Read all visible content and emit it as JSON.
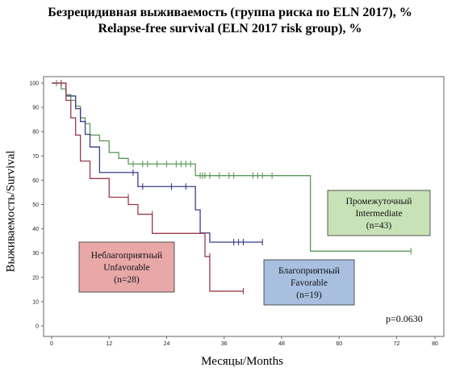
{
  "title": {
    "line1": "Безрецидивная выживаемость (группа риска по ELN 2017), %",
    "line2": "Relapse-free survival (ELN 2017 risk group), %"
  },
  "chart_data": {
    "type": "line",
    "step": true,
    "xlabel": "Месяцы/Months",
    "ylabel": "Выживаемость/Survival",
    "xlim": [
      0,
      80
    ],
    "ylim": [
      0,
      100
    ],
    "xticks": [
      0,
      12,
      24,
      36,
      48,
      60,
      72,
      80
    ],
    "yticks": [
      0,
      10,
      20,
      30,
      40,
      50,
      60,
      70,
      80,
      90,
      100
    ],
    "grid": false,
    "p_value": "p=0.0630",
    "series": [
      {
        "key": "intermediate",
        "name": "Промежуточный Intermediate (n=43)",
        "label_lines": [
          "Промежуточный",
          "Intermediate",
          "(n=43)"
        ],
        "color": "#5a9a5a",
        "box_fill": "#c8e2b8",
        "x": [
          0,
          2,
          3,
          4,
          5,
          6,
          7,
          8,
          10,
          12,
          14,
          16,
          30,
          54,
          75
        ],
        "y": [
          100,
          97.6,
          95.2,
          92.9,
          90.5,
          85.7,
          83.3,
          78.6,
          76.2,
          71.4,
          69.0,
          66.7,
          61.9,
          30.8,
          30.8
        ],
        "censor_x": [
          1,
          17,
          19,
          20,
          22,
          24,
          26,
          27,
          28,
          29,
          31,
          31.5,
          32,
          33,
          35,
          37,
          38,
          42,
          43,
          44,
          46,
          75
        ],
        "censor_y": [
          100,
          66.7,
          66.7,
          66.7,
          66.7,
          66.7,
          66.7,
          66.7,
          66.7,
          66.7,
          61.9,
          61.9,
          61.9,
          61.9,
          61.9,
          61.9,
          61.9,
          61.9,
          61.9,
          61.9,
          61.9,
          30.8
        ]
      },
      {
        "key": "favorable",
        "name": "Благоприятный Favorable (n=19)",
        "label_lines": [
          "Благоприятный",
          "Favorable",
          "(n=19)"
        ],
        "color": "#3b3b8a",
        "box_fill": "#a8bfe0",
        "x": [
          0,
          3,
          5,
          6,
          7,
          8,
          10,
          18,
          30,
          31,
          33,
          44
        ],
        "y": [
          100,
          94.7,
          89.5,
          84.2,
          78.9,
          73.7,
          63.2,
          57.4,
          47.8,
          38.3,
          34.5,
          34.5
        ],
        "censor_x": [
          17,
          19,
          25,
          28,
          38,
          39,
          40,
          44
        ],
        "censor_y": [
          63.2,
          57.4,
          57.4,
          57.4,
          34.5,
          34.5,
          34.5,
          34.5
        ]
      },
      {
        "key": "unfavorable",
        "name": "Неблагоприятный Unfavorable (n=28)",
        "label_lines": [
          "Неблагоприятный",
          "Unfavorable",
          "(n=28)"
        ],
        "color": "#9a3a4a",
        "box_fill": "#e8a8a8",
        "x": [
          0,
          3,
          4,
          5,
          6,
          8,
          12,
          16,
          18,
          21,
          32,
          33,
          40
        ],
        "y": [
          100,
          92.9,
          85.7,
          78.6,
          67.9,
          60.7,
          53.0,
          50.0,
          46.0,
          38.1,
          28.6,
          14.3,
          14.3
        ],
        "censor_x": [
          2,
          16,
          21,
          33,
          40
        ],
        "censor_y": [
          100,
          53.0,
          46.0,
          28.6,
          14.3
        ]
      }
    ]
  }
}
